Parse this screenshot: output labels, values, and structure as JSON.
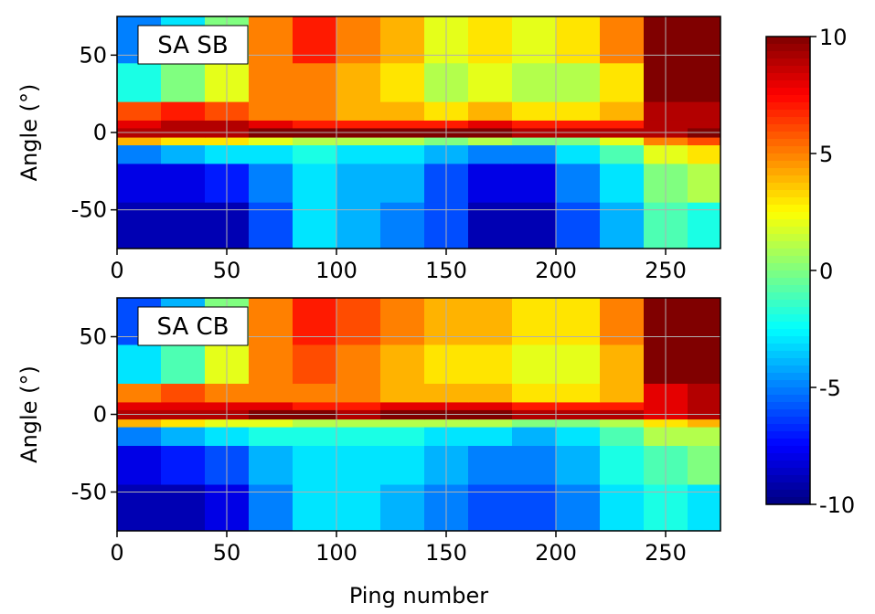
{
  "chart_data": [
    {
      "type": "heatmap",
      "title": "SA SB",
      "ylabel": "Angle (°)",
      "xlim": [
        0,
        275
      ],
      "xticks": [
        0,
        50,
        100,
        150,
        200,
        250
      ],
      "ylim": [
        -75,
        75
      ],
      "yticks": [
        -50,
        0,
        50
      ],
      "grid": true,
      "x_bins": [
        0,
        20,
        40,
        60,
        80,
        100,
        120,
        140,
        160,
        180,
        200,
        220,
        240,
        260,
        275
      ],
      "y_bins": [
        -75,
        -45,
        -20,
        -8,
        -3,
        3,
        8,
        20,
        45,
        75
      ],
      "z": [
        [
          -9,
          -9,
          -9,
          -6,
          -3,
          -4,
          -5,
          -6,
          -9,
          -9,
          -6,
          -4,
          -1,
          -2
        ],
        [
          -8,
          -8,
          -7,
          -5,
          -3,
          -4,
          -4,
          -6,
          -8,
          -8,
          -5,
          -3,
          0,
          1
        ],
        [
          -5,
          -4,
          -3,
          -3,
          -2,
          -3,
          -3,
          -4,
          -5,
          -5,
          -3,
          -1,
          2,
          3
        ],
        [
          4,
          3,
          3,
          2,
          1,
          1,
          1,
          0,
          1,
          0,
          0,
          2,
          5,
          6
        ],
        [
          9,
          9,
          9,
          10,
          10,
          10,
          10,
          10,
          10,
          9,
          9,
          9,
          9,
          10
        ],
        [
          8,
          9,
          9,
          8,
          7,
          7,
          7,
          7,
          8,
          7,
          7,
          7,
          9,
          9
        ],
        [
          6,
          7,
          6,
          5,
          5,
          4,
          4,
          3,
          4,
          3,
          3,
          4,
          9,
          9
        ],
        [
          -2,
          0,
          2,
          5,
          5,
          4,
          3,
          1,
          2,
          1,
          1,
          3,
          10,
          10
        ],
        [
          -5,
          -3,
          0,
          5,
          7,
          5,
          4,
          2,
          3,
          2,
          3,
          5,
          10,
          10
        ]
      ]
    },
    {
      "type": "heatmap",
      "title": "SA CB",
      "ylabel": "Angle (°)",
      "xlabel": "Ping number",
      "xlim": [
        0,
        275
      ],
      "xticks": [
        0,
        50,
        100,
        150,
        200,
        250
      ],
      "ylim": [
        -75,
        75
      ],
      "yticks": [
        -50,
        0,
        50
      ],
      "grid": true,
      "x_bins": [
        0,
        20,
        40,
        60,
        80,
        100,
        120,
        140,
        160,
        180,
        200,
        220,
        240,
        260,
        275
      ],
      "y_bins": [
        -75,
        -45,
        -20,
        -8,
        -3,
        3,
        8,
        20,
        45,
        75
      ],
      "z": [
        [
          -9,
          -9,
          -8,
          -5,
          -3,
          -3,
          -4,
          -5,
          -6,
          -6,
          -5,
          -3,
          -2,
          -3
        ],
        [
          -8,
          -7,
          -6,
          -4,
          -3,
          -3,
          -3,
          -4,
          -5,
          -5,
          -4,
          -2,
          -1,
          0
        ],
        [
          -5,
          -4,
          -3,
          -2,
          -2,
          -2,
          -2,
          -3,
          -3,
          -4,
          -3,
          -1,
          1,
          1
        ],
        [
          4,
          3,
          2,
          2,
          1,
          1,
          1,
          1,
          1,
          0,
          0,
          1,
          3,
          4
        ],
        [
          9,
          9,
          9,
          10,
          10,
          9,
          10,
          10,
          10,
          9,
          9,
          9,
          8,
          9
        ],
        [
          8,
          8,
          8,
          8,
          7,
          7,
          8,
          8,
          8,
          7,
          7,
          7,
          8,
          9
        ],
        [
          5,
          6,
          5,
          5,
          5,
          5,
          4,
          4,
          4,
          3,
          3,
          4,
          8,
          9
        ],
        [
          -3,
          -1,
          2,
          5,
          6,
          5,
          4,
          3,
          3,
          2,
          2,
          4,
          10,
          10
        ],
        [
          -6,
          -4,
          0,
          5,
          7,
          6,
          5,
          4,
          4,
          3,
          3,
          5,
          10,
          10
        ]
      ]
    }
  ],
  "colorbar": {
    "colormap": "jet",
    "clim": [
      -10,
      10
    ],
    "ticks": [
      -10,
      -5,
      0,
      5,
      10
    ]
  }
}
